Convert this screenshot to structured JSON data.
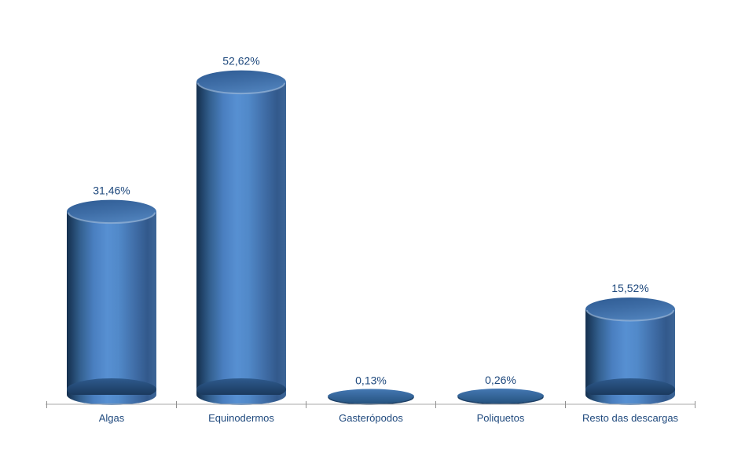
{
  "chart_data": {
    "type": "bar",
    "subtype": "3d-cylinder",
    "title": "",
    "xlabel": "",
    "ylabel": "",
    "categories": [
      "Algas",
      "Equinodermos",
      "Gasterópodos",
      "Poliquetos",
      "Resto das descargas"
    ],
    "values": [
      31.46,
      52.62,
      0.13,
      0.26,
      15.52
    ],
    "value_labels": [
      "31,46%",
      "52,62%",
      "0,13%",
      "0,26%",
      "15,52%"
    ],
    "ylim": [
      0,
      60
    ],
    "grid": false,
    "legend": false,
    "decimal_separator": ",",
    "palette": {
      "background": "#FFFFFF",
      "bar_main": "#4F81BD",
      "body_edge_dark": "#15304E",
      "body_dark2": "#1E3F63",
      "body_shade": "#33608F",
      "body_light": "#4A7FC0",
      "body_highlight": "#5790D2",
      "body_mid": "#5189C9",
      "body_right1": "#416FA9",
      "body_right2": "#32598C",
      "body_right_rim": "#3D6697",
      "cap_dark": "#2E5B93",
      "cap_mid": "#3E6DA6",
      "cap_light": "#4E80BA",
      "bottom_shadow_top": "#2E5A8D",
      "bottom_shadow_bottom": "#142F4E",
      "tiny_top": "#4478B3",
      "tiny_bottom": "#26537F",
      "tiny_rim": "#1C3F66",
      "label_text": "#1F497D",
      "axis_line": "#A9A9A9",
      "tick_mark": "#8F8F8F"
    }
  }
}
